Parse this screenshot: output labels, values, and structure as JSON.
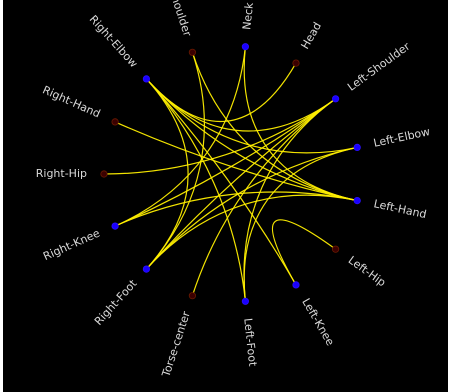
{
  "diagram": {
    "type": "chord",
    "colors": {
      "background": "#000000",
      "edge": "#ffef00",
      "node_strong": "#1a00ff",
      "node_weak": "#3a0000",
      "label": "#d9d9d9"
    },
    "nodes": [
      {
        "id": "neck",
        "label": "Neck",
        "color": "#1a00ff"
      },
      {
        "id": "head",
        "label": "Head",
        "color": "#3a0000"
      },
      {
        "id": "left-shoulder",
        "label": "Left-Shoulder",
        "color": "#1a00ff"
      },
      {
        "id": "left-elbow",
        "label": "Left-Elbow",
        "color": "#1a00ff"
      },
      {
        "id": "left-hand",
        "label": "Left-Hand",
        "color": "#1a00ff"
      },
      {
        "id": "left-hip",
        "label": "Left-Hip",
        "color": "#3a0000"
      },
      {
        "id": "left-knee",
        "label": "Left-Knee",
        "color": "#1a00ff"
      },
      {
        "id": "left-foot",
        "label": "Left-Foot",
        "color": "#1a00ff"
      },
      {
        "id": "torse-center",
        "label": "Torse-center",
        "color": "#3a0000"
      },
      {
        "id": "right-foot",
        "label": "Right-Foot",
        "color": "#1a00ff"
      },
      {
        "id": "right-knee",
        "label": "Right-Knee",
        "color": "#1a00ff"
      },
      {
        "id": "right-hip",
        "label": "Right-Hip",
        "color": "#3a0000"
      },
      {
        "id": "right-hand",
        "label": "Right-Hand",
        "color": "#3a0000"
      },
      {
        "id": "right-elbow",
        "label": "Right-Elbow",
        "color": "#1a00ff"
      },
      {
        "id": "right-shoulder",
        "label": "Right-Shoulder",
        "color": "#3a0000"
      }
    ],
    "edges": [
      [
        "neck",
        "left-hand"
      ],
      [
        "neck",
        "right-knee"
      ],
      [
        "head",
        "right-elbow"
      ],
      [
        "left-shoulder",
        "right-elbow"
      ],
      [
        "left-shoulder",
        "right-foot"
      ],
      [
        "left-shoulder",
        "right-knee"
      ],
      [
        "left-shoulder",
        "torse-center"
      ],
      [
        "left-shoulder",
        "left-foot"
      ],
      [
        "left-elbow",
        "right-elbow"
      ],
      [
        "left-elbow",
        "right-foot"
      ],
      [
        "left-hand",
        "right-elbow"
      ],
      [
        "left-hand",
        "right-shoulder"
      ],
      [
        "left-hand",
        "right-hand"
      ],
      [
        "left-hand",
        "right-foot"
      ],
      [
        "left-hand",
        "right-knee"
      ],
      [
        "left-hip",
        "left-knee"
      ],
      [
        "left-knee",
        "right-elbow"
      ],
      [
        "right-elbow",
        "right-foot"
      ],
      [
        "right-elbow",
        "left-foot"
      ],
      [
        "right-shoulder",
        "right-foot"
      ],
      [
        "right-hip",
        "left-shoulder"
      ],
      [
        "left-foot",
        "left-elbow"
      ]
    ]
  }
}
